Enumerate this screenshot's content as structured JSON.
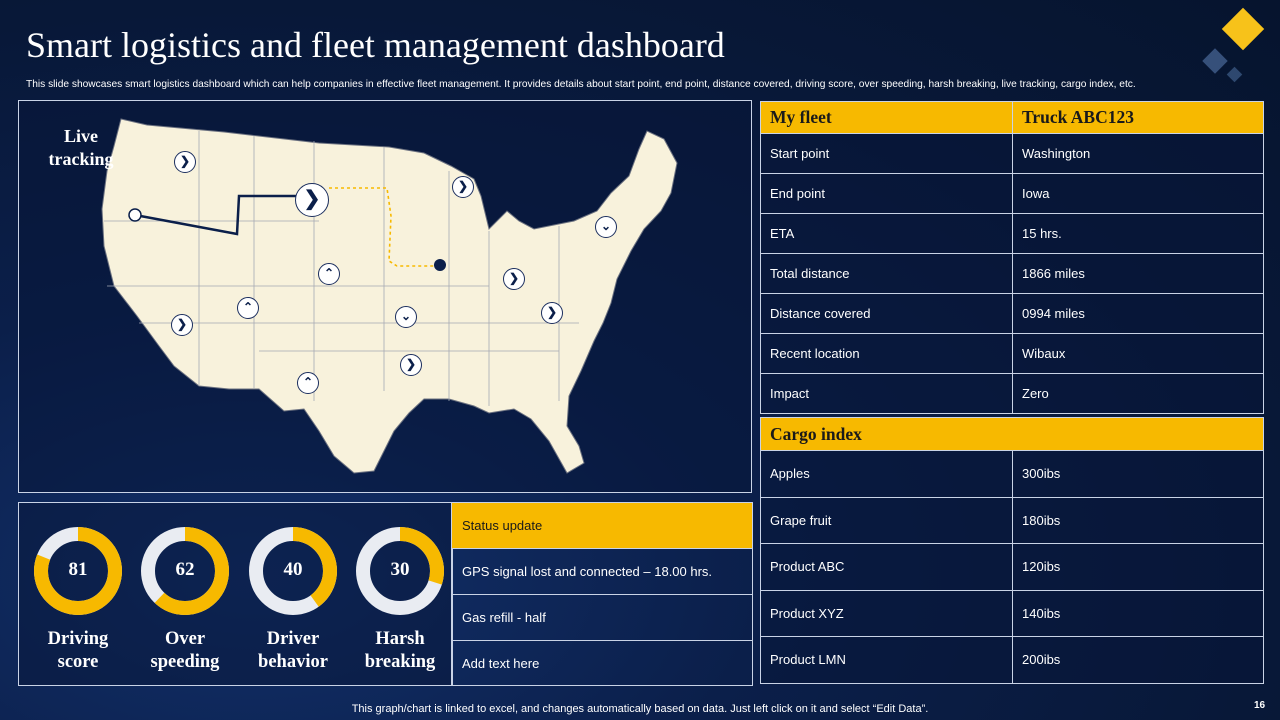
{
  "header": {
    "title": "Smart logistics and fleet management dashboard",
    "subtitle": "This slide showcases smart logistics dashboard which can help companies in effective fleet management. It provides details about start point, end point, distance covered, driving score, over speeding, harsh breaking, live tracking, cargo index, etc."
  },
  "map": {
    "label": "Live tracking"
  },
  "scores": [
    {
      "label": "Driving score",
      "value": 81
    },
    {
      "label": "Over speeding",
      "value": 62
    },
    {
      "label": "Driver behavior",
      "value": 40
    },
    {
      "label": "Harsh breaking",
      "value": 30
    }
  ],
  "status": {
    "heading": "Status update",
    "items": [
      "GPS signal lost and connected – 18.00 hrs.",
      "Gas refill - half",
      "Add text here"
    ]
  },
  "fleet": {
    "col1": "My fleet",
    "col2": "Truck ABC123",
    "rows": [
      {
        "label": "Start point",
        "value": "Washington"
      },
      {
        "label": "End point",
        "value": "Iowa"
      },
      {
        "label": "ETA",
        "value": "15 hrs."
      },
      {
        "label": "Total distance",
        "value": "1866 miles"
      },
      {
        "label": "Distance covered",
        "value": "0994 miles"
      },
      {
        "label": "Recent location",
        "value": "Wibaux"
      },
      {
        "label": "Impact",
        "value": "Zero"
      }
    ]
  },
  "cargo": {
    "heading": "Cargo index",
    "rows": [
      {
        "label": "Apples",
        "value": "300ibs"
      },
      {
        "label": "Grape fruit",
        "value": "180ibs"
      },
      {
        "label": "Product ABC",
        "value": "120ibs"
      },
      {
        "label": "Product XYZ",
        "value": "140ibs"
      },
      {
        "label": "Product LMN",
        "value": "200ibs"
      }
    ]
  },
  "footer": {
    "note": "This graph/chart is linked to excel, and changes automatically based on data. Just left click on it and select “Edit Data”.",
    "page": "16"
  },
  "colors": {
    "accent": "#f7b900",
    "track": "#e9ecf2",
    "background": "#0b1f4a"
  },
  "icons": {
    "pin": "chevron-arrow-icon"
  }
}
